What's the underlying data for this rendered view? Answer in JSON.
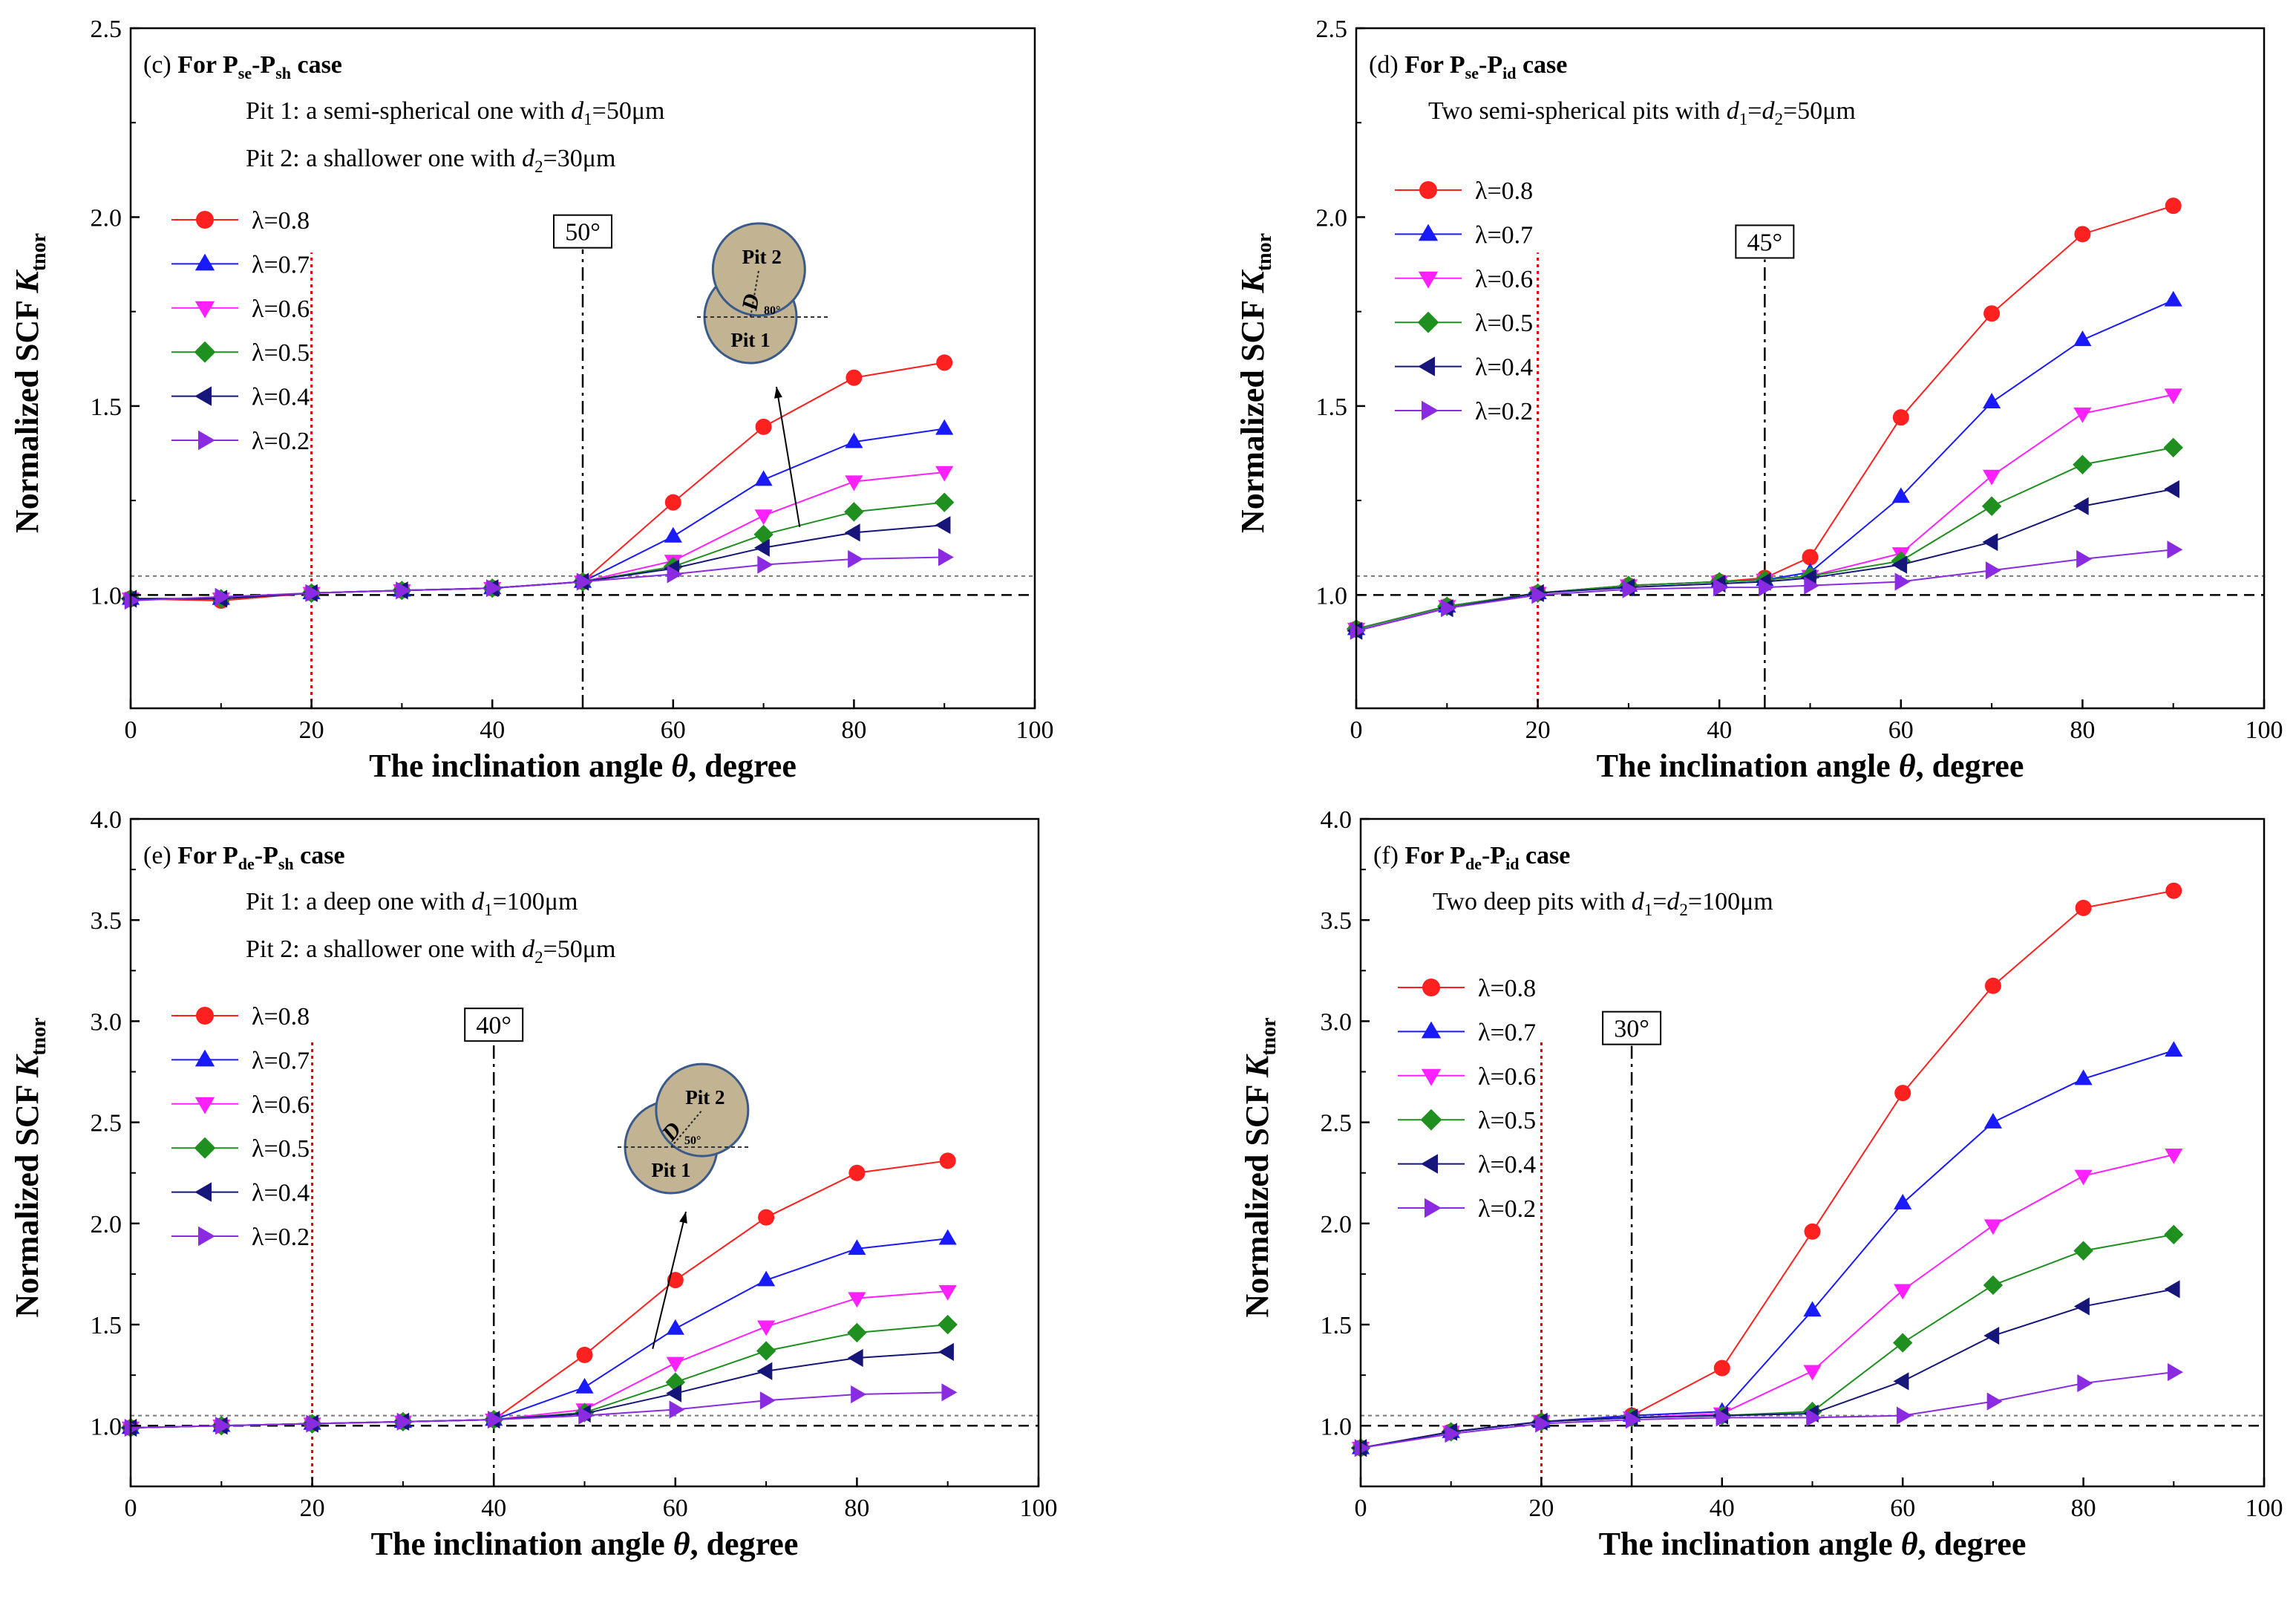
{
  "chart_data": [
    {
      "type": "line",
      "panel": "(c)",
      "title": "(c) For Pse-Psh case",
      "title_parts": {
        "label": "(c)",
        "prefix": "For P",
        "sub1": "se",
        "mid": "-P",
        "sub2": "sh",
        "suffix": " case"
      },
      "notes": [
        {
          "parts": [
            [
              "Pit 1: a semi-spherical one with ",
              ""
            ],
            [
              "d",
              "i"
            ],
            [
              "1",
              "sub"
            ],
            [
              "=50μm",
              ""
            ]
          ]
        },
        {
          "parts": [
            [
              "Pit 2: a shallower one with ",
              ""
            ],
            [
              "d",
              "i"
            ],
            [
              "2",
              "sub"
            ],
            [
              "=30μm",
              ""
            ]
          ]
        }
      ],
      "xlabel": "The inclination angle θ, degree",
      "ylabel": "Normalized SCF Ktnor",
      "xlim": [
        0,
        100
      ],
      "ylim": [
        0.7,
        2.5
      ],
      "xticks": [
        0,
        20,
        40,
        60,
        80,
        100
      ],
      "yticks": [
        1.0,
        1.5,
        2.0,
        2.5
      ],
      "x": [
        0,
        10,
        20,
        30,
        40,
        50,
        60,
        70,
        80,
        90
      ],
      "series": [
        {
          "name": "λ=0.8",
          "color": "#ff2020",
          "marker": "circle",
          "values": [
            0.99,
            0.985,
            1.005,
            1.012,
            1.018,
            1.035,
            1.245,
            1.445,
            1.575,
            1.615
          ]
        },
        {
          "name": "λ=0.7",
          "color": "#1a1aff",
          "marker": "triangle-up",
          "values": [
            0.99,
            0.99,
            1.005,
            1.012,
            1.018,
            1.035,
            1.155,
            1.305,
            1.405,
            1.44
          ]
        },
        {
          "name": "λ=0.6",
          "color": "#ff20ff",
          "marker": "triangle-down",
          "values": [
            0.99,
            0.99,
            1.005,
            1.012,
            1.018,
            1.035,
            1.09,
            1.21,
            1.3,
            1.325
          ]
        },
        {
          "name": "λ=0.5",
          "color": "#1f8f1f",
          "marker": "diamond",
          "values": [
            0.99,
            0.99,
            1.005,
            1.012,
            1.018,
            1.035,
            1.075,
            1.16,
            1.22,
            1.245
          ]
        },
        {
          "name": "λ=0.4",
          "color": "#15157a",
          "marker": "triangle-left",
          "values": [
            0.99,
            0.99,
            1.005,
            1.012,
            1.018,
            1.035,
            1.07,
            1.125,
            1.165,
            1.185
          ]
        },
        {
          "name": "λ=0.2",
          "color": "#8a2be2",
          "marker": "triangle-right",
          "values": [
            0.985,
            0.995,
            1.005,
            1.012,
            1.018,
            1.035,
            1.055,
            1.08,
            1.095,
            1.1
          ]
        }
      ],
      "ref_lines": {
        "red_dotted_x": 20,
        "dashdot_x": 50,
        "dash_y": 1.0,
        "gray_y": 1.05
      },
      "angle_label": "50°",
      "inset": {
        "pit1": "Pit 1",
        "pit2": "Pit 2",
        "D": "D",
        "angle": "80°"
      }
    },
    {
      "type": "line",
      "panel": "(d)",
      "title": "(d) For Pse-Pid case",
      "title_parts": {
        "label": "(d)",
        "prefix": "For P",
        "sub1": "se",
        "mid": "-P",
        "sub2": "id",
        "suffix": " case"
      },
      "notes": [
        {
          "parts": [
            [
              "Two semi-spherical pits with ",
              ""
            ],
            [
              "d",
              "i"
            ],
            [
              "1",
              "sub"
            ],
            [
              "=",
              ""
            ],
            [
              "d",
              "i"
            ],
            [
              "2",
              "sub"
            ],
            [
              "=50μm",
              ""
            ]
          ]
        }
      ],
      "xlabel": "The inclination angle θ, degree",
      "ylabel": "Normalized SCF Ktnor",
      "xlim": [
        0,
        100
      ],
      "ylim": [
        0.7,
        2.5
      ],
      "xticks": [
        0,
        20,
        40,
        60,
        80,
        100
      ],
      "yticks": [
        1.0,
        1.5,
        2.0,
        2.5
      ],
      "x": [
        0,
        10,
        20,
        30,
        40,
        45,
        50,
        60,
        70,
        80,
        90
      ],
      "series": [
        {
          "name": "λ=0.8",
          "color": "#ff2020",
          "marker": "circle",
          "values": [
            0.91,
            0.97,
            1.005,
            1.025,
            1.035,
            1.045,
            1.1,
            1.47,
            1.745,
            1.955,
            2.03
          ]
        },
        {
          "name": "λ=0.7",
          "color": "#1a1aff",
          "marker": "triangle-up",
          "values": [
            0.91,
            0.97,
            1.005,
            1.025,
            1.035,
            1.04,
            1.06,
            1.26,
            1.51,
            1.675,
            1.78
          ]
        },
        {
          "name": "λ=0.6",
          "color": "#ff20ff",
          "marker": "triangle-down",
          "values": [
            0.91,
            0.97,
            1.005,
            1.025,
            1.035,
            1.04,
            1.05,
            1.11,
            1.315,
            1.48,
            1.53
          ]
        },
        {
          "name": "λ=0.5",
          "color": "#1f8f1f",
          "marker": "diamond",
          "values": [
            0.91,
            0.97,
            1.005,
            1.025,
            1.035,
            1.04,
            1.05,
            1.09,
            1.235,
            1.345,
            1.39
          ]
        },
        {
          "name": "λ=0.4",
          "color": "#15157a",
          "marker": "triangle-left",
          "values": [
            0.905,
            0.965,
            1.005,
            1.02,
            1.03,
            1.035,
            1.045,
            1.08,
            1.14,
            1.235,
            1.28
          ]
        },
        {
          "name": "λ=0.2",
          "color": "#8a2be2",
          "marker": "triangle-right",
          "values": [
            0.905,
            0.965,
            1.0,
            1.015,
            1.02,
            1.02,
            1.025,
            1.035,
            1.065,
            1.095,
            1.12
          ]
        }
      ],
      "ref_lines": {
        "red_dotted_x": 20,
        "dashdot_x": 45,
        "dash_y": 1.0,
        "gray_y": 1.05
      },
      "angle_label": "45°"
    },
    {
      "type": "line",
      "panel": "(e)",
      "title": "(e) For Pde-Psh case",
      "title_parts": {
        "label": "(e)",
        "prefix": "For P",
        "sub1": "de",
        "mid": "-P",
        "sub2": "sh",
        "suffix": " case"
      },
      "notes": [
        {
          "parts": [
            [
              "Pit 1: a deep one with ",
              ""
            ],
            [
              "d",
              "i"
            ],
            [
              "1",
              "sub"
            ],
            [
              "=100μm",
              ""
            ]
          ]
        },
        {
          "parts": [
            [
              "Pit 2: a shallower one with ",
              ""
            ],
            [
              "d",
              "i"
            ],
            [
              "2",
              "sub"
            ],
            [
              "=50μm",
              ""
            ]
          ]
        }
      ],
      "xlabel": "The inclination angle θ, degree",
      "ylabel": "Normalized SCF Ktnor",
      "xlim": [
        0,
        100
      ],
      "ylim": [
        0.7,
        4.0
      ],
      "xticks": [
        0,
        20,
        40,
        60,
        80,
        100
      ],
      "yticks": [
        1.0,
        1.5,
        2.0,
        2.5,
        3.0,
        3.5,
        4.0
      ],
      "x": [
        0,
        10,
        20,
        30,
        40,
        50,
        60,
        70,
        80,
        90
      ],
      "series": [
        {
          "name": "λ=0.8",
          "color": "#ff2020",
          "marker": "circle",
          "values": [
            0.99,
            1.0,
            1.01,
            1.02,
            1.03,
            1.35,
            1.72,
            2.03,
            2.25,
            2.31
          ]
        },
        {
          "name": "λ=0.7",
          "color": "#1a1aff",
          "marker": "triangle-up",
          "values": [
            0.99,
            1.0,
            1.01,
            1.02,
            1.03,
            1.19,
            1.48,
            1.72,
            1.875,
            1.925
          ]
        },
        {
          "name": "λ=0.6",
          "color": "#ff20ff",
          "marker": "triangle-down",
          "values": [
            0.99,
            1.0,
            1.01,
            1.02,
            1.03,
            1.08,
            1.31,
            1.49,
            1.63,
            1.665
          ]
        },
        {
          "name": "λ=0.5",
          "color": "#1f8f1f",
          "marker": "diamond",
          "values": [
            0.99,
            1.0,
            1.01,
            1.02,
            1.03,
            1.065,
            1.215,
            1.37,
            1.46,
            1.5
          ]
        },
        {
          "name": "λ=0.4",
          "color": "#15157a",
          "marker": "triangle-left",
          "values": [
            0.99,
            1.0,
            1.01,
            1.02,
            1.03,
            1.06,
            1.16,
            1.27,
            1.335,
            1.365
          ]
        },
        {
          "name": "λ=0.2",
          "color": "#8a2be2",
          "marker": "triangle-right",
          "values": [
            0.99,
            1.0,
            1.01,
            1.02,
            1.03,
            1.05,
            1.08,
            1.125,
            1.155,
            1.165
          ]
        }
      ],
      "ref_lines": {
        "red_dotted_x": 20,
        "dashdot_x": 40,
        "dash_y": 1.0,
        "gray_y": 1.05
      },
      "angle_label": "40°",
      "inset": {
        "pit1": "Pit 1",
        "pit2": "Pit 2",
        "D": "D",
        "angle": "50°"
      }
    },
    {
      "type": "line",
      "panel": "(f)",
      "title": "(f) For Pde-Pid case",
      "title_parts": {
        "label": "(f)",
        "prefix": "For P",
        "sub1": "de",
        "mid": "-P",
        "sub2": "id",
        "suffix": " case"
      },
      "notes": [
        {
          "parts": [
            [
              "Two deep pits with ",
              ""
            ],
            [
              "d",
              "i"
            ],
            [
              "1",
              "sub"
            ],
            [
              "=",
              ""
            ],
            [
              "d",
              "i"
            ],
            [
              "2",
              "sub"
            ],
            [
              "=100μm",
              ""
            ]
          ]
        }
      ],
      "xlabel": "The inclination angle θ, degree",
      "ylabel": "Normalized SCF Ktnor",
      "xlim": [
        0,
        100
      ],
      "ylim": [
        0.7,
        4.0
      ],
      "xticks": [
        0,
        20,
        40,
        60,
        80,
        100
      ],
      "yticks": [
        1.0,
        1.5,
        2.0,
        2.5,
        3.0,
        3.5,
        4.0
      ],
      "x": [
        0,
        10,
        20,
        30,
        40,
        50,
        60,
        70,
        80,
        90
      ],
      "series": [
        {
          "name": "λ=0.8",
          "color": "#ff2020",
          "marker": "circle",
          "values": [
            0.89,
            0.97,
            1.02,
            1.05,
            1.285,
            1.96,
            2.645,
            3.175,
            3.56,
            3.645
          ]
        },
        {
          "name": "λ=0.7",
          "color": "#1a1aff",
          "marker": "triangle-up",
          "values": [
            0.89,
            0.97,
            1.02,
            1.05,
            1.07,
            1.57,
            2.1,
            2.5,
            2.715,
            2.855
          ]
        },
        {
          "name": "λ=0.6",
          "color": "#ff20ff",
          "marker": "triangle-down",
          "values": [
            0.89,
            0.97,
            1.02,
            1.04,
            1.06,
            1.27,
            1.67,
            1.99,
            2.235,
            2.34
          ]
        },
        {
          "name": "λ=0.5",
          "color": "#1f8f1f",
          "marker": "diamond",
          "values": [
            0.89,
            0.97,
            1.02,
            1.04,
            1.05,
            1.07,
            1.41,
            1.695,
            1.865,
            1.945
          ]
        },
        {
          "name": "λ=0.4",
          "color": "#15157a",
          "marker": "triangle-left",
          "values": [
            0.89,
            0.97,
            1.02,
            1.04,
            1.05,
            1.06,
            1.22,
            1.445,
            1.59,
            1.675
          ]
        },
        {
          "name": "λ=0.2",
          "color": "#8a2be2",
          "marker": "triangle-right",
          "values": [
            0.89,
            0.96,
            1.01,
            1.03,
            1.04,
            1.04,
            1.05,
            1.12,
            1.21,
            1.265
          ]
        }
      ],
      "ref_lines": {
        "red_dotted_x": 20,
        "dashdot_x": 30,
        "dash_y": 1.0,
        "gray_y": 1.05
      },
      "angle_label": "30°"
    }
  ]
}
